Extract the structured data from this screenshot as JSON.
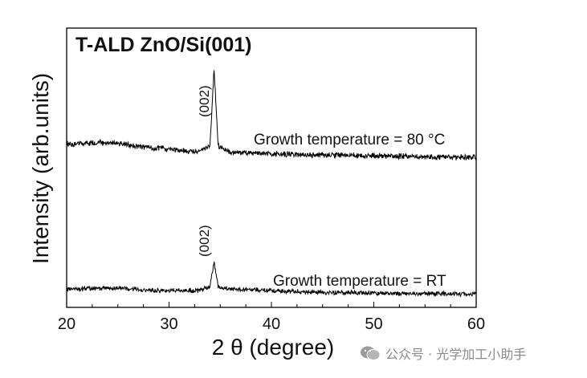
{
  "chart_data": {
    "type": "line",
    "title": "T-ALD ZnO/Si(001)",
    "xlabel": "2 θ (degree)",
    "ylabel": "Intensity (arb.units)",
    "xlim": [
      20,
      60
    ],
    "xticks": [
      20,
      30,
      40,
      50,
      60
    ],
    "y_ticks_shown": false,
    "grid": false,
    "series": [
      {
        "annotation": "Growth temperature = 80 °C",
        "peak_label": "(002)",
        "peak_position": 34.4,
        "profile": [
          [
            20,
            0.1
          ],
          [
            24,
            0.12
          ],
          [
            28,
            0.06
          ],
          [
            33,
            0.01
          ],
          [
            34.0,
            0.08
          ],
          [
            34.4,
            1.0
          ],
          [
            34.8,
            0.08
          ],
          [
            36,
            0.0
          ],
          [
            45,
            -0.03
          ],
          [
            60,
            -0.06
          ]
        ]
      },
      {
        "annotation": "Growth temperature = RT",
        "peak_label": "(002)",
        "peak_position": 34.4,
        "profile": [
          [
            20,
            0.02
          ],
          [
            24,
            0.05
          ],
          [
            28,
            0.0
          ],
          [
            33,
            0.0
          ],
          [
            34.0,
            0.08
          ],
          [
            34.4,
            0.55
          ],
          [
            34.8,
            0.08
          ],
          [
            36,
            0.03
          ],
          [
            45,
            -0.04
          ],
          [
            60,
            -0.07
          ]
        ]
      }
    ]
  },
  "watermark": "公众号 · 光学加工小助手"
}
